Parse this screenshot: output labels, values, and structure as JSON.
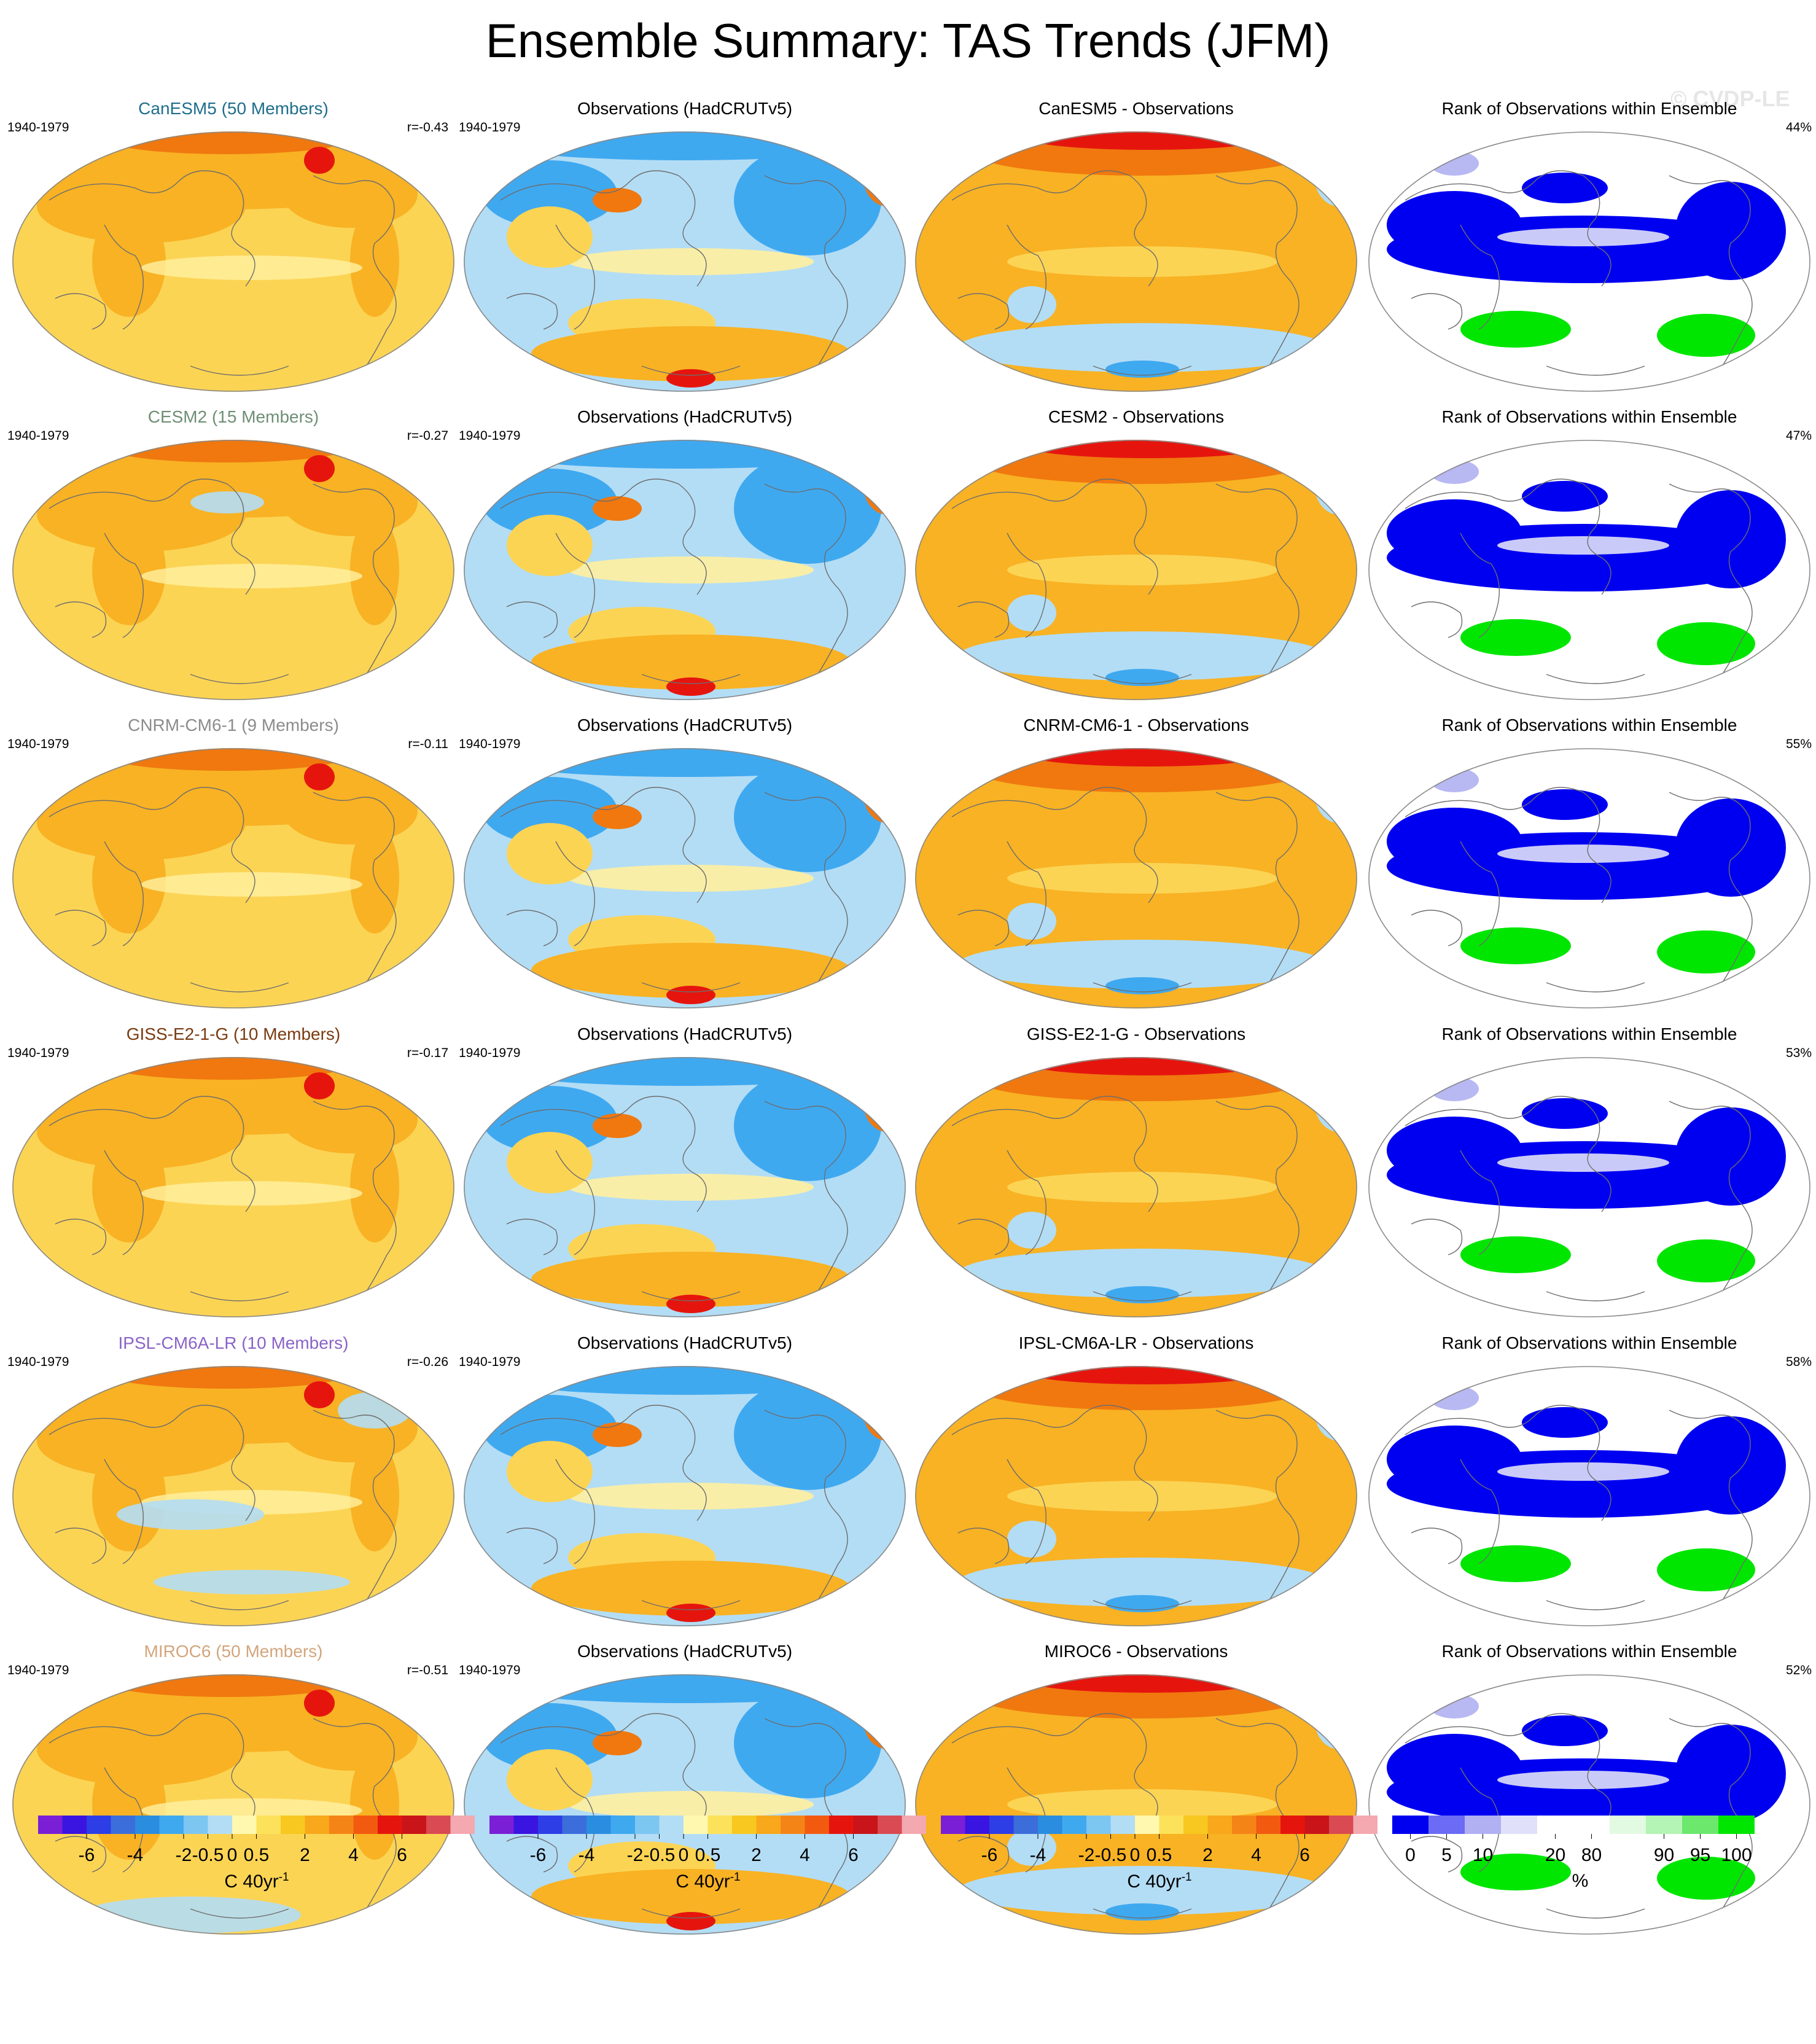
{
  "title": "Ensemble Summary: TAS Trends (JFM)",
  "watermark": "© CVDP-LE",
  "period": "1940-1979",
  "obs_title": "Observations (HadCRUTv5)",
  "rank_title": "Rank of Observations within Ensemble",
  "rows": [
    {
      "model": "CanESM5",
      "ens_title": "CanESM5 (50 Members)",
      "title_color": "#1f6e8c",
      "corr": "r=-0.43",
      "diff_title": "CanESM5 - Observations",
      "rank_pct": "44%"
    },
    {
      "model": "CESM2",
      "ens_title": "CESM2 (15 Members)",
      "title_color": "#6f8f75",
      "corr": "r=-0.27",
      "diff_title": "CESM2 - Observations",
      "rank_pct": "47%"
    },
    {
      "model": "CNRM-CM6-1",
      "ens_title": "CNRM-CM6-1 (9 Members)",
      "title_color": "#8c8c8c",
      "corr": "r=-0.11",
      "diff_title": "CNRM-CM6-1 - Observations",
      "rank_pct": "55%"
    },
    {
      "model": "GISS-E2-1-G",
      "ens_title": "GISS-E2-1-G (10 Members)",
      "title_color": "#7a3b10",
      "corr": "r=-0.17",
      "diff_title": "GISS-E2-1-G - Observations",
      "rank_pct": "53%"
    },
    {
      "model": "IPSL-CM6A-LR",
      "ens_title": "IPSL-CM6A-LR (10 Members)",
      "title_color": "#8a63c7",
      "corr": "r=-0.26",
      "diff_title": "IPSL-CM6A-LR - Observations",
      "rank_pct": "58%"
    },
    {
      "model": "MIROC6",
      "ens_title": "MIROC6 (50 Members)",
      "title_color": "#d3a57c",
      "corr": "r=-0.51",
      "diff_title": "MIROC6 - Observations",
      "rank_pct": "52%"
    }
  ],
  "trend_colorbar": {
    "colors": [
      "#7a1fd6",
      "#3a14e0",
      "#2d3ee6",
      "#3c6edb",
      "#2a8de0",
      "#3fa9f0",
      "#7cc6f2",
      "#b3ddf5",
      "#fff8ae",
      "#fce25a",
      "#f8c820",
      "#f8a81a",
      "#f58417",
      "#f25a10",
      "#e5150e",
      "#c9141a",
      "#d94a52",
      "#f4a8b0"
    ],
    "labels": [
      "-6",
      "-4",
      "-2",
      "-0.5",
      "0",
      "0.5",
      "2",
      "4",
      "6"
    ],
    "unit": "C 40yr",
    "unit_sup": "-1"
  },
  "rank_colorbar": {
    "colors": [
      "#0000f0",
      "#6b6bf5",
      "#b0b0f2",
      "#e0e0fa",
      "#ffffff",
      "#ffffff",
      "#e2f9e2",
      "#b4f4b4",
      "#6ce86c",
      "#00e600"
    ],
    "labels": [
      "0",
      "5",
      "10",
      "20",
      "80",
      "90",
      "95",
      "100"
    ],
    "unit": "%"
  },
  "colors": {
    "ocean_warm": "#fcd454",
    "land_warm": "#f8b224",
    "strong_warm": "#f0780f",
    "extreme_warm": "#e5150e",
    "cool": "#b3ddf5",
    "cold": "#3fa9f0",
    "rank_low": "#0000f0",
    "rank_high": "#00e600"
  }
}
